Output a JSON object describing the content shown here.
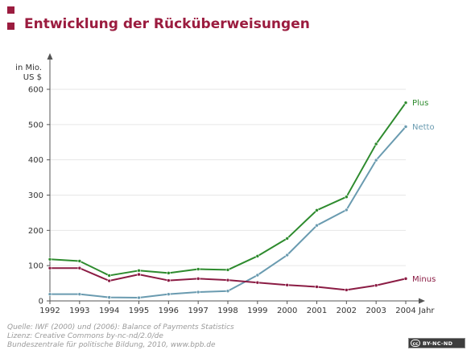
{
  "header": {
    "title": "Entwicklung der Rücküberweisungen"
  },
  "colors": {
    "brand": "#9b1c3f",
    "plus": "#2e8b2e",
    "netto": "#6a9bb0",
    "minus": "#8b1c44",
    "axis": "#555555",
    "grid": "#e6e6e6"
  },
  "chart_data": {
    "type": "line",
    "ylabel": "in Mio.\nUS $",
    "xlabel": "Jahr",
    "ylim": [
      0,
      600
    ],
    "yticks": [
      0,
      100,
      200,
      300,
      400,
      500,
      600
    ],
    "grid": "horizontal",
    "legend": "inline labels at line ends",
    "categories": [
      "1992",
      "1993",
      "1994",
      "1995",
      "1996",
      "1997",
      "1998",
      "1999",
      "2000",
      "2001",
      "2002",
      "2003",
      "2004"
    ],
    "series": [
      {
        "name": "Plus",
        "color": "#2e8b2e",
        "values": [
          118,
          113,
          72,
          86,
          79,
          90,
          88,
          127,
          177,
          257,
          295,
          445,
          562
        ]
      },
      {
        "name": "Netto",
        "color": "#6a9bb0",
        "values": [
          19,
          19,
          10,
          9,
          19,
          25,
          28,
          73,
          130,
          214,
          258,
          399,
          494
        ]
      },
      {
        "name": "Minus",
        "color": "#8b1c44",
        "values": [
          93,
          93,
          57,
          75,
          58,
          63,
          59,
          52,
          45,
          40,
          31,
          44,
          63
        ]
      }
    ]
  },
  "footer": {
    "source_lines": [
      "Quelle: IWF (2000) und (2006): Balance of Payments Statistics",
      "Lizenz: Creative Commons by-nc-nd/2.0/de",
      "Bundeszentrale für politische Bildung, 2010, www.bpb.de"
    ],
    "license_badge_logo": "cc",
    "license_badge_text": "BY-NC-ND"
  }
}
